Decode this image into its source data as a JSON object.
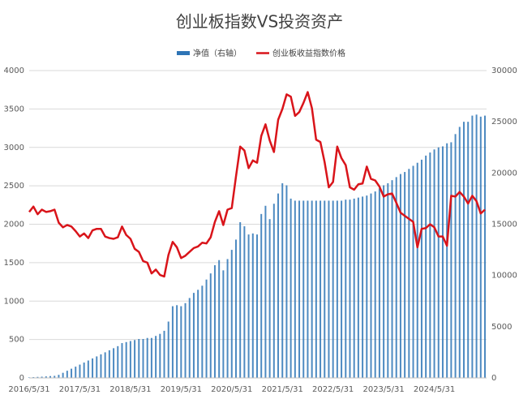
{
  "chart_data": {
    "type": "bar_line",
    "title": "创业板指数VS投资资产",
    "categories": [
      "2016/5/31",
      null,
      null,
      null,
      null,
      null,
      null,
      null,
      null,
      null,
      null,
      null,
      "2017/5/31",
      null,
      null,
      null,
      null,
      null,
      null,
      null,
      null,
      null,
      null,
      null,
      "2018/5/31",
      null,
      null,
      null,
      null,
      null,
      null,
      null,
      null,
      null,
      null,
      null,
      "2019/5/31",
      null,
      null,
      null,
      null,
      null,
      null,
      null,
      null,
      null,
      null,
      null,
      "2020/5/31",
      null,
      null,
      null,
      null,
      null,
      null,
      null,
      null,
      null,
      null,
      null,
      "2021/5/31",
      null,
      null,
      null,
      null,
      null,
      null,
      null,
      null,
      null,
      null,
      null,
      "2022/5/31",
      null,
      null,
      null,
      null,
      null,
      null,
      null,
      null,
      null,
      null,
      null,
      "2023/5/31",
      null,
      null,
      null,
      null,
      null,
      null,
      null,
      null,
      null,
      null,
      null,
      "2024/5/31",
      null,
      null,
      null,
      null,
      null,
      null,
      null,
      null,
      null,
      null,
      null,
      null
    ],
    "series": [
      {
        "name": "净值（右轴）",
        "color": "#2e75b6",
        "axis": "y2",
        "kind": "bar",
        "values": [
          50,
          80,
          100,
          120,
          150,
          180,
          200,
          300,
          500,
          700,
          900,
          1100,
          1300,
          1500,
          1700,
          1900,
          2100,
          2300,
          2500,
          2700,
          2900,
          3100,
          3400,
          3500,
          3600,
          3700,
          3800,
          3800,
          3900,
          3900,
          4100,
          4300,
          4600,
          5500,
          7000,
          7100,
          7000,
          7300,
          7800,
          8300,
          8600,
          9000,
          9600,
          10200,
          11000,
          11500,
          10500,
          11600,
          12500,
          13500,
          15200,
          14800,
          14000,
          14100,
          14000,
          16000,
          16800,
          15500,
          17000,
          18000,
          19000,
          18800,
          17500,
          17300,
          17300,
          17300,
          17300,
          17300,
          17300,
          17300,
          17300,
          17300,
          17300,
          17300,
          17300,
          17400,
          17400,
          17500,
          17600,
          17700,
          17800,
          18000,
          18200,
          18500,
          18800,
          19000,
          19300,
          19600,
          19900,
          20100,
          20400,
          20700,
          21000,
          21300,
          21700,
          22000,
          22300,
          22500,
          22600,
          22900,
          23000,
          23800,
          24500,
          25000,
          25000,
          25600,
          25700,
          25500,
          25600
        ]
      },
      {
        "name": "创业板收益指数价格",
        "color": "#d9141a",
        "axis": "y",
        "kind": "line",
        "values": [
          2160,
          2230,
          2130,
          2190,
          2160,
          2170,
          2190,
          2020,
          1960,
          1990,
          1970,
          1910,
          1840,
          1880,
          1820,
          1920,
          1940,
          1940,
          1840,
          1820,
          1810,
          1830,
          1970,
          1860,
          1810,
          1680,
          1640,
          1520,
          1500,
          1360,
          1410,
          1340,
          1320,
          1600,
          1770,
          1700,
          1560,
          1590,
          1640,
          1690,
          1710,
          1760,
          1750,
          1830,
          2030,
          2170,
          1990,
          2190,
          2210,
          2620,
          3010,
          2960,
          2730,
          2830,
          2800,
          3150,
          3300,
          3090,
          2940,
          3360,
          3500,
          3690,
          3660,
          3410,
          3460,
          3580,
          3720,
          3510,
          3100,
          3070,
          2810,
          2480,
          2550,
          3010,
          2860,
          2770,
          2480,
          2450,
          2520,
          2530,
          2750,
          2590,
          2570,
          2490,
          2360,
          2390,
          2400,
          2280,
          2150,
          2110,
          2070,
          2030,
          1700,
          1940,
          1950,
          2000,
          1960,
          1840,
          1840,
          1720,
          2370,
          2360,
          2420,
          2360,
          2270,
          2370,
          2300,
          2140,
          2190
        ]
      }
    ],
    "ylim": [
      0,
      4000
    ],
    "yticks": [
      0,
      500,
      1000,
      1500,
      2000,
      2500,
      3000,
      3500,
      4000
    ],
    "y2lim": [
      0,
      30000
    ],
    "y2ticks": [
      0,
      5000,
      10000,
      15000,
      20000,
      25000,
      30000
    ],
    "grid": true
  }
}
